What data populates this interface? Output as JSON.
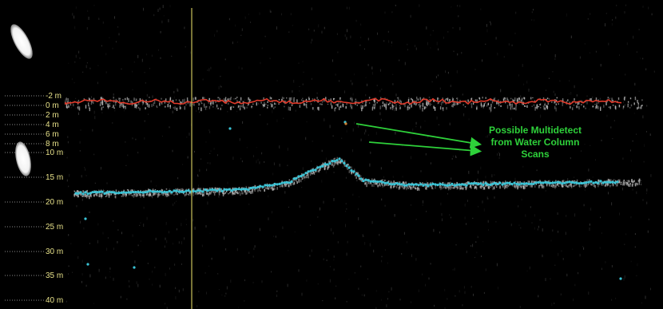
{
  "depth_scale": {
    "labels": [
      "-2 m",
      "0 m",
      "2 m",
      "4 m",
      "6 m",
      "8 m",
      "10 m",
      "15 m",
      "20 m",
      "25 m",
      "30 m",
      "35 m",
      "40 m"
    ]
  },
  "annotation": {
    "lines": [
      "Possible Multidetect",
      "from Water Column",
      "Scans"
    ],
    "color": "#2ed13a"
  },
  "colors": {
    "background": "#000000",
    "depth_label": "#e6e089",
    "cursor_line": "#c9c25a",
    "surface_trace": "#e23a2a",
    "bottom_trace": "#3bc4d6",
    "sonar_return": "#bfbfbf"
  },
  "icons": {
    "top": "ellipse-icon",
    "middle": "ellipse-icon"
  }
}
